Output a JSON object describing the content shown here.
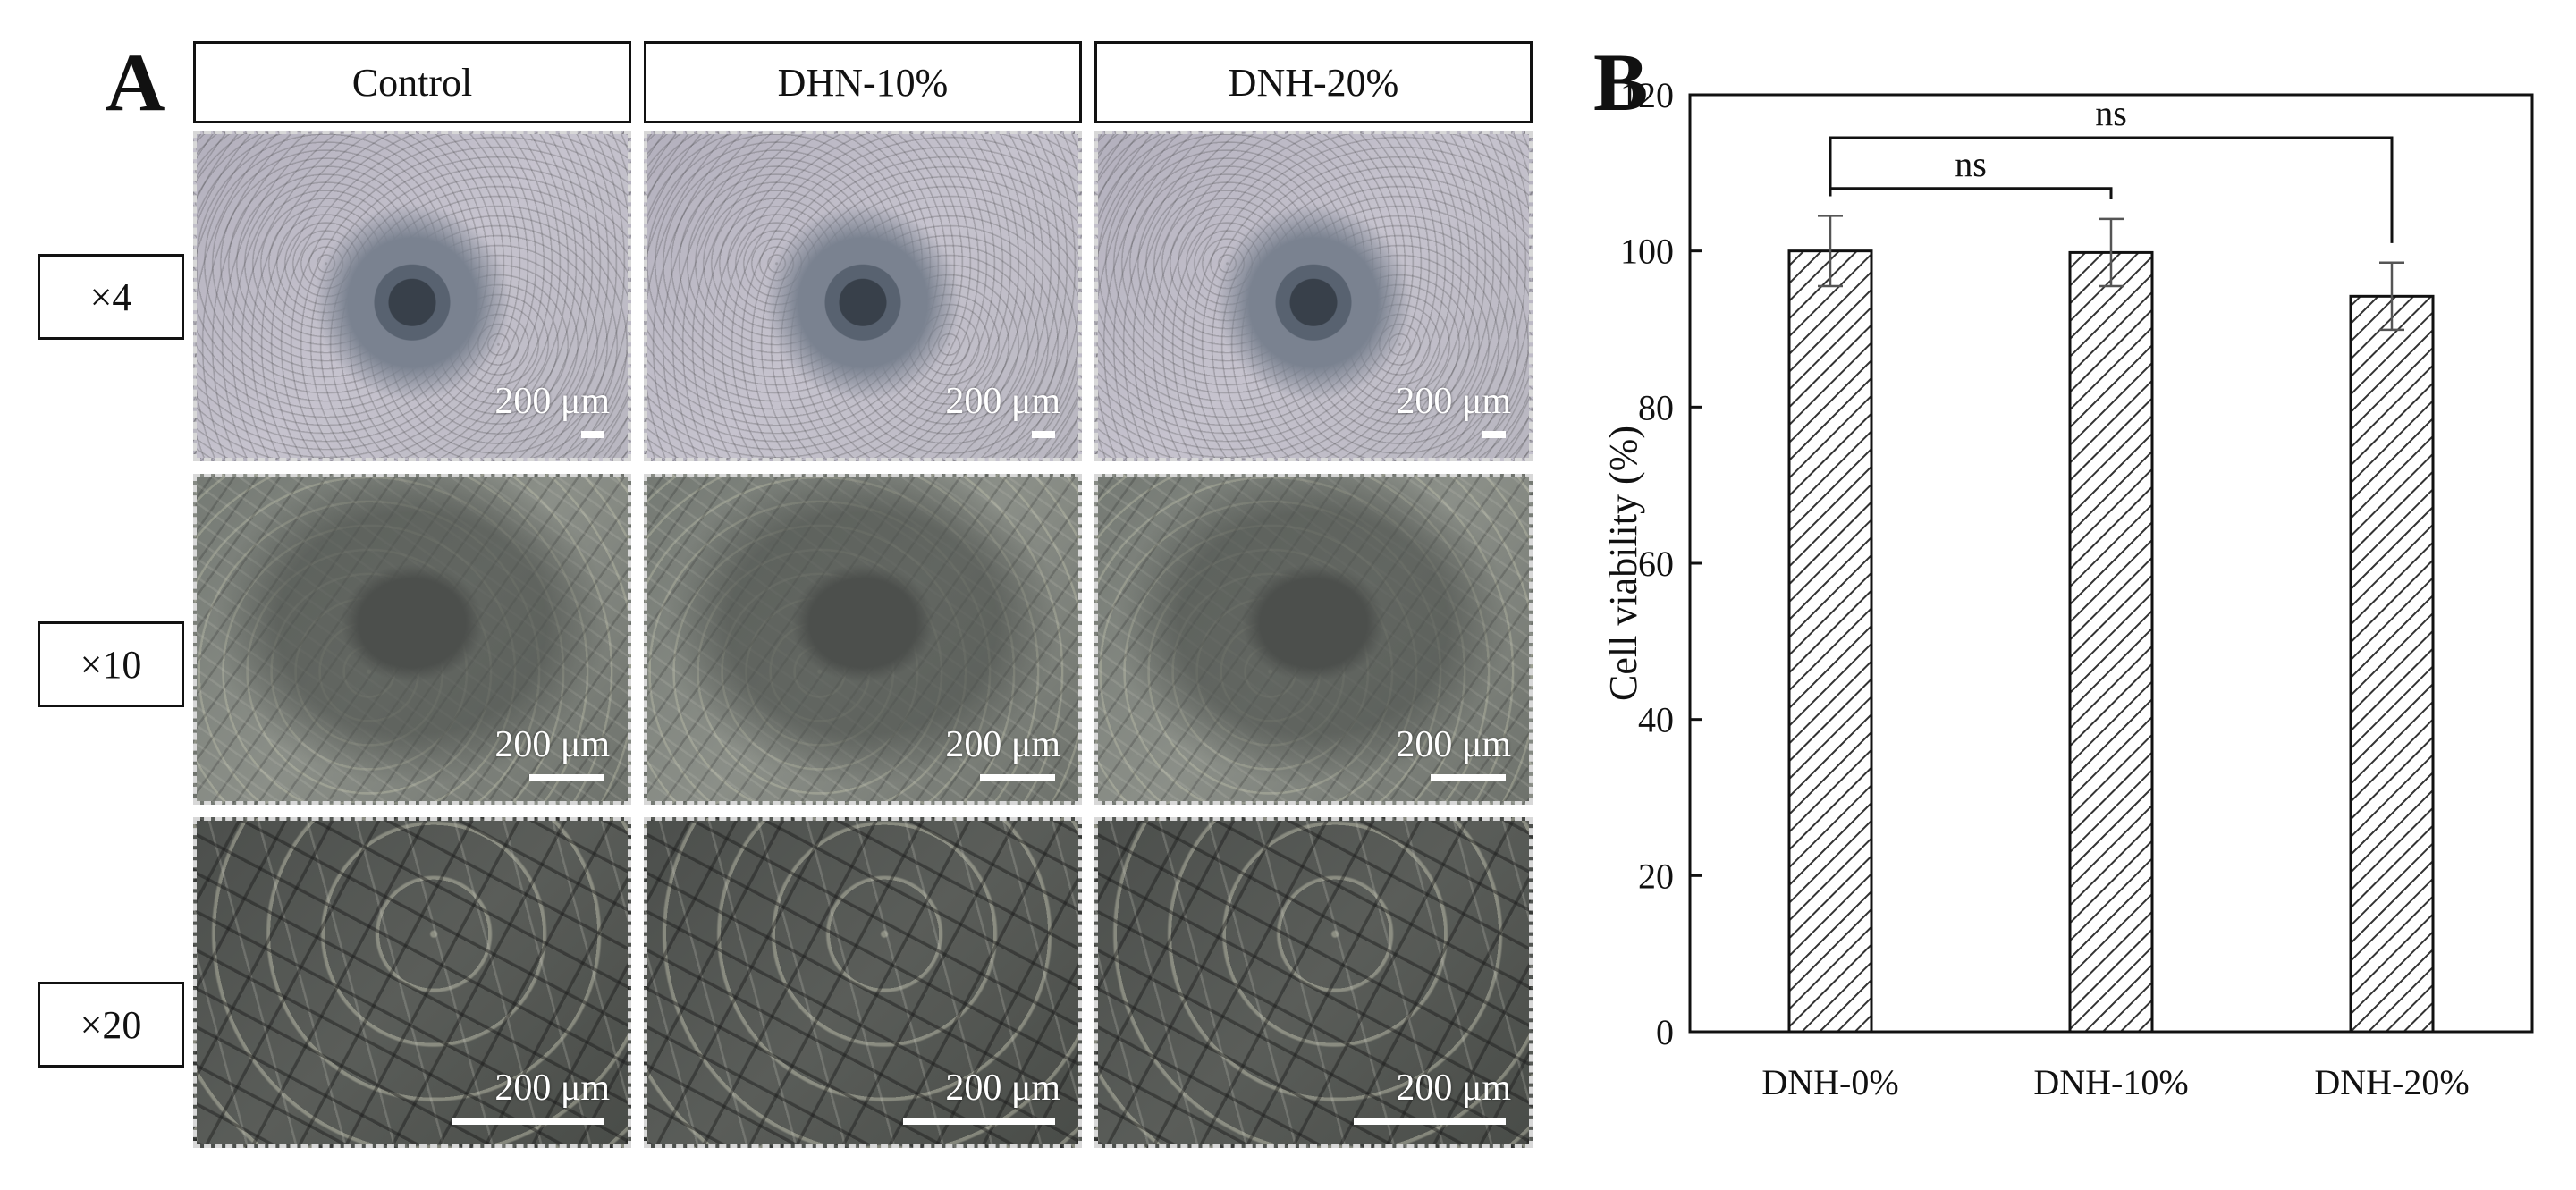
{
  "panel_a": {
    "letter": "A",
    "columns": [
      "Control",
      "DHN-10%",
      "DNH-20%"
    ],
    "rows": [
      "×4",
      "×10",
      "×20"
    ],
    "scale_label": "200 μm"
  },
  "panel_b": {
    "letter": "B"
  },
  "chart_data": {
    "type": "bar",
    "categories": [
      "DNH-0%",
      "DNH-10%",
      "DNH-20%"
    ],
    "values": [
      100,
      99.8,
      94.2
    ],
    "errors": [
      4.5,
      4.3,
      4.3
    ],
    "ylabel": "Cell viability (%)",
    "xlabel": "",
    "ylim": [
      0,
      120
    ],
    "yticks": [
      0,
      20,
      40,
      60,
      80,
      100,
      120
    ],
    "bar_pattern": "diagonal-hatch",
    "bar_fill": "#ffffff",
    "significance": [
      {
        "from": "DNH-0%",
        "to": "DNH-10%",
        "label": "ns"
      },
      {
        "from": "DNH-0%",
        "to": "DNH-20%",
        "label": "ns"
      }
    ],
    "grid": false,
    "legend": "none"
  }
}
